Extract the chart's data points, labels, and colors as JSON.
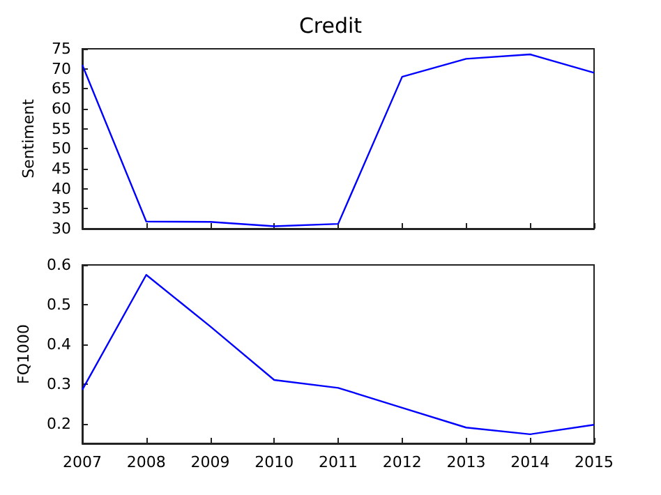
{
  "chart_data": [
    {
      "type": "line",
      "title": "Credit",
      "ylabel": "Sentiment",
      "x": [
        2007,
        2008,
        2009,
        2010,
        2011,
        2012,
        2013,
        2014,
        2015
      ],
      "values": [
        71,
        31.8,
        31.7,
        30.6,
        31.2,
        68,
        72.5,
        73.6,
        69
      ],
      "color": "#0000ff",
      "xlim": [
        2007,
        2015
      ],
      "xticks": [
        2007,
        2008,
        2009,
        2010,
        2011,
        2012,
        2013,
        2014,
        2015
      ],
      "ylim": [
        30,
        75
      ],
      "yticks": [
        30,
        35,
        40,
        45,
        50,
        55,
        60,
        65,
        70,
        75
      ],
      "tick_labels": "y"
    },
    {
      "type": "line",
      "ylabel": "FQ1000",
      "x": [
        2007,
        2008,
        2009,
        2010,
        2011,
        2012,
        2013,
        2014,
        2015
      ],
      "values": [
        0.285,
        0.575,
        0.445,
        0.31,
        0.29,
        0.24,
        0.19,
        0.173,
        0.197
      ],
      "color": "#0000ff",
      "xlim": [
        2007,
        2015
      ],
      "xticks": [
        2007,
        2008,
        2009,
        2010,
        2011,
        2012,
        2013,
        2014,
        2015
      ],
      "ylim": [
        0.15,
        0.6
      ],
      "yticks": [
        0.2,
        0.3,
        0.4,
        0.5,
        0.6
      ]
    }
  ]
}
